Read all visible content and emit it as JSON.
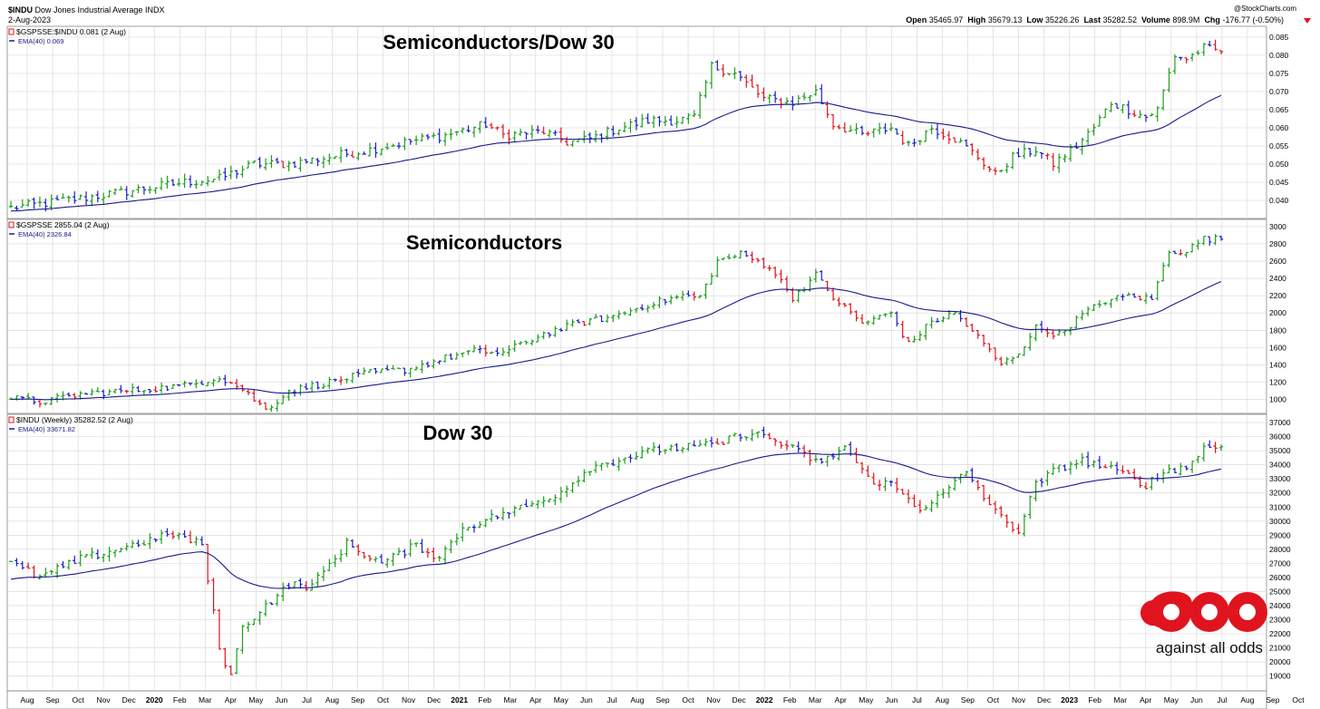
{
  "header": {
    "symbol": "$INDU",
    "name": "Dow Jones Industrial Average",
    "exchange": "INDX",
    "date": "2-Aug-2023",
    "copyright": "@StockCharts.com",
    "quote": {
      "open_label": "Open",
      "open": "35465.97",
      "high_label": "High",
      "high": "35679.13",
      "low_label": "Low",
      "low": "35226.26",
      "last_label": "Last",
      "last": "35282.52",
      "volume_label": "Volume",
      "volume": "898.9M",
      "chg_label": "Chg",
      "chg": "-176.77 (-0.50%)"
    }
  },
  "colors": {
    "up": "#1d9e1d",
    "down": "#e0141e",
    "flat": "#1c1ccf",
    "ema": "#1a1a8c",
    "grid": "#d4d4d4",
    "logo": "#e0141e"
  },
  "x_axis": {
    "labels": [
      "Aug",
      "Sep",
      "Oct",
      "Nov",
      "Dec",
      "2020",
      "Feb",
      "Mar",
      "Apr",
      "May",
      "Jun",
      "Jul",
      "Aug",
      "Sep",
      "Oct",
      "Nov",
      "Dec",
      "2021",
      "Feb",
      "Mar",
      "Apr",
      "May",
      "Jun",
      "Jul",
      "Aug",
      "Sep",
      "Oct",
      "Nov",
      "Dec",
      "2022",
      "Feb",
      "Mar",
      "Apr",
      "May",
      "Jun",
      "Jul",
      "Aug",
      "Sep",
      "Oct",
      "Nov",
      "Dec",
      "2023",
      "Feb",
      "Mar",
      "Apr",
      "May",
      "Jun",
      "Jul",
      "Aug",
      "Sep",
      "Oct"
    ],
    "bold_labels": [
      "2020",
      "2021",
      "2022",
      "2023"
    ]
  },
  "chart_data": [
    {
      "type": "line",
      "panel": "top",
      "title": "Semiconductors/Dow 30",
      "legend": [
        {
          "text": "$GSPSSE:$INDU 0.081 (2 Aug)"
        },
        {
          "text": "EMA(40) 0.069"
        }
      ],
      "y_ticks": [
        0.04,
        0.045,
        0.05,
        0.055,
        0.06,
        0.065,
        0.07,
        0.075,
        0.08,
        0.085
      ],
      "ylim": [
        0.036,
        0.0865
      ],
      "bar_count": 210,
      "anchors": [
        [
          0,
          0.038
        ],
        [
          5,
          0.039
        ],
        [
          14,
          0.041
        ],
        [
          22,
          0.043
        ],
        [
          30,
          0.045
        ],
        [
          36,
          0.046
        ],
        [
          42,
          0.05
        ],
        [
          48,
          0.05
        ],
        [
          55,
          0.052
        ],
        [
          62,
          0.054
        ],
        [
          68,
          0.056
        ],
        [
          75,
          0.058
        ],
        [
          82,
          0.061
        ],
        [
          85,
          0.058
        ],
        [
          92,
          0.059
        ],
        [
          96,
          0.056
        ],
        [
          100,
          0.057
        ],
        [
          105,
          0.06
        ],
        [
          110,
          0.062
        ],
        [
          115,
          0.062
        ],
        [
          118,
          0.063
        ],
        [
          121,
          0.077
        ],
        [
          125,
          0.075
        ],
        [
          130,
          0.068
        ],
        [
          135,
          0.067
        ],
        [
          139,
          0.07
        ],
        [
          142,
          0.061
        ],
        [
          147,
          0.058
        ],
        [
          152,
          0.06
        ],
        [
          155,
          0.055
        ],
        [
          159,
          0.06
        ],
        [
          163,
          0.057
        ],
        [
          167,
          0.052
        ],
        [
          170,
          0.047
        ],
        [
          173,
          0.052
        ],
        [
          177,
          0.054
        ],
        [
          180,
          0.05
        ],
        [
          184,
          0.055
        ],
        [
          187,
          0.06
        ],
        [
          190,
          0.067
        ],
        [
          193,
          0.065
        ],
        [
          196,
          0.063
        ],
        [
          198,
          0.065
        ],
        [
          201,
          0.08
        ],
        [
          203,
          0.079
        ],
        [
          206,
          0.082
        ],
        [
          209,
          0.081
        ]
      ],
      "ema_start": 0.037,
      "ema_alpha": 0.055,
      "volatility": 0.0018,
      "last_value": 0.081,
      "ema_last": 0.069
    },
    {
      "type": "line",
      "panel": "middle",
      "title": "Semiconductors",
      "legend": [
        {
          "text": "$GSPSSE 2855.04 (2 Aug)"
        },
        {
          "text": "EMA(40) 2326.84"
        }
      ],
      "y_ticks": [
        1000,
        1200,
        1400,
        1600,
        1800,
        2000,
        2200,
        2400,
        2600,
        2800,
        3000
      ],
      "ylim": [
        880,
        3020
      ],
      "bar_count": 210,
      "anchors": [
        [
          0,
          1020
        ],
        [
          5,
          970
        ],
        [
          12,
          1060
        ],
        [
          22,
          1110
        ],
        [
          30,
          1160
        ],
        [
          36,
          1260
        ],
        [
          40,
          1120
        ],
        [
          44,
          880
        ],
        [
          48,
          1100
        ],
        [
          55,
          1200
        ],
        [
          62,
          1310
        ],
        [
          68,
          1340
        ],
        [
          75,
          1480
        ],
        [
          80,
          1560
        ],
        [
          85,
          1540
        ],
        [
          92,
          1760
        ],
        [
          98,
          1880
        ],
        [
          104,
          1960
        ],
        [
          110,
          2100
        ],
        [
          116,
          2200
        ],
        [
          119,
          2180
        ],
        [
          122,
          2600
        ],
        [
          126,
          2680
        ],
        [
          131,
          2540
        ],
        [
          135,
          2180
        ],
        [
          139,
          2440
        ],
        [
          142,
          2180
        ],
        [
          147,
          1880
        ],
        [
          152,
          2000
        ],
        [
          155,
          1640
        ],
        [
          159,
          1900
        ],
        [
          163,
          2000
        ],
        [
          167,
          1720
        ],
        [
          171,
          1400
        ],
        [
          174,
          1540
        ],
        [
          177,
          1830
        ],
        [
          181,
          1750
        ],
        [
          185,
          1980
        ],
        [
          189,
          2140
        ],
        [
          193,
          2200
        ],
        [
          197,
          2160
        ],
        [
          200,
          2720
        ],
        [
          203,
          2720
        ],
        [
          206,
          2860
        ],
        [
          209,
          2855
        ]
      ],
      "ema_start": 1000,
      "ema_alpha": 0.055,
      "volatility": 55,
      "last_value": 2855.04,
      "ema_last": 2326.84
    },
    {
      "type": "line",
      "panel": "bottom",
      "title": "Dow 30",
      "legend": [
        {
          "text": "$INDU (Weekly) 35282.52 (2 Aug)"
        },
        {
          "text": "EMA(40) 33671.82"
        }
      ],
      "y_ticks": [
        19000,
        20000,
        21000,
        22000,
        23000,
        24000,
        25000,
        26000,
        27000,
        28000,
        29000,
        30000,
        31000,
        32000,
        33000,
        34000,
        35000,
        36000,
        37000
      ],
      "ylim": [
        18200,
        37200
      ],
      "bar_count": 210,
      "anchors": [
        [
          0,
          27000
        ],
        [
          5,
          26000
        ],
        [
          12,
          27300
        ],
        [
          20,
          28200
        ],
        [
          28,
          29100
        ],
        [
          33,
          28300
        ],
        [
          36,
          21000
        ],
        [
          38,
          19000
        ],
        [
          40,
          22500
        ],
        [
          44,
          24000
        ],
        [
          48,
          25500
        ],
        [
          52,
          25400
        ],
        [
          58,
          28400
        ],
        [
          64,
          27000
        ],
        [
          70,
          28300
        ],
        [
          74,
          27400
        ],
        [
          78,
          29500
        ],
        [
          84,
          30400
        ],
        [
          90,
          31200
        ],
        [
          95,
          32100
        ],
        [
          100,
          33800
        ],
        [
          106,
          34500
        ],
        [
          112,
          35100
        ],
        [
          118,
          35300
        ],
        [
          122,
          35400
        ],
        [
          126,
          36200
        ],
        [
          130,
          36100
        ],
        [
          135,
          35100
        ],
        [
          140,
          34100
        ],
        [
          144,
          35300
        ],
        [
          148,
          33000
        ],
        [
          152,
          32600
        ],
        [
          157,
          30900
        ],
        [
          161,
          31900
        ],
        [
          165,
          33500
        ],
        [
          170,
          30600
        ],
        [
          174,
          29300
        ],
        [
          177,
          32600
        ],
        [
          181,
          33800
        ],
        [
          185,
          34300
        ],
        [
          189,
          33800
        ],
        [
          193,
          33200
        ],
        [
          196,
          32600
        ],
        [
          200,
          33700
        ],
        [
          203,
          33800
        ],
        [
          206,
          35200
        ],
        [
          209,
          35280
        ]
      ],
      "ema_start": 25800,
      "ema_alpha": 0.055,
      "volatility": 420,
      "last_value": 35282.52,
      "ema_last": 33671.82
    }
  ],
  "logo": {
    "text": "against all odds"
  }
}
